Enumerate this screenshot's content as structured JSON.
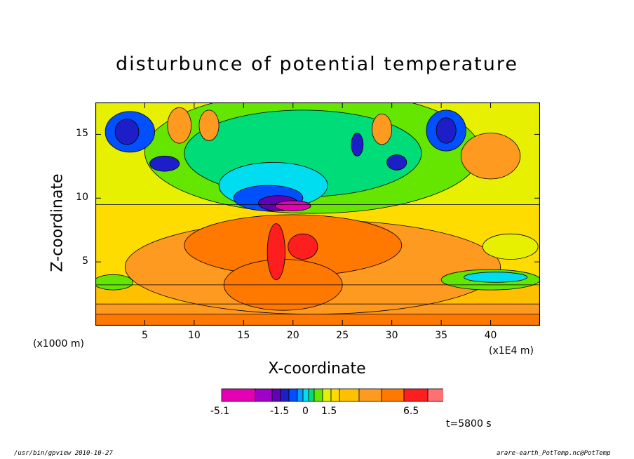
{
  "chart_data": {
    "type": "heatmap",
    "title": "disturbunce of potential temperature",
    "xlabel": "X-coordinate",
    "ylabel": "Z-coordinate",
    "x_unit": "(x1000 m)",
    "x_unit_secondary": "(x1E4 m)",
    "xlim": [
      0,
      45
    ],
    "ylim": [
      0,
      17.5
    ],
    "x_ticks": [
      "5",
      "10",
      "15",
      "20",
      "25",
      "30",
      "35",
      "40"
    ],
    "y_ticks": [
      "5",
      "10",
      "15"
    ],
    "colorbar": {
      "tick_labels": [
        "-5.1",
        "-1.5",
        "0",
        "1.5",
        "6.5"
      ],
      "colors": [
        "#e600b4",
        "#a000c8",
        "#6400b4",
        "#1e1ec8",
        "#0050ff",
        "#00a0ff",
        "#00dcf0",
        "#00dc78",
        "#64e600",
        "#e6f000",
        "#ffdc00",
        "#ffc000",
        "#ff9a20",
        "#ff7800",
        "#ff1e1e",
        "#ff7070",
        "#ffb4c8"
      ]
    },
    "regions": [
      {
        "shape": "rect",
        "x": [
          0,
          45
        ],
        "z": [
          0,
          17.5
        ],
        "level": "#ffc000"
      },
      {
        "shape": "rect",
        "x": [
          0,
          45
        ],
        "z": [
          3.2,
          17.5
        ],
        "level": "#ffdc00"
      },
      {
        "shape": "rect",
        "x": [
          0,
          45
        ],
        "z": [
          9.5,
          17.5
        ],
        "level": "#e6f000"
      },
      {
        "shape": "rect",
        "x": [
          0,
          45
        ],
        "z": [
          0,
          0.9
        ],
        "level": "#ff7800"
      },
      {
        "shape": "rect",
        "x": [
          0,
          45
        ],
        "z": [
          0.9,
          1.7
        ],
        "level": "#ff9a20"
      },
      {
        "shape": "rect",
        "x": [
          0,
          45
        ],
        "z": [
          1.7,
          2.3
        ],
        "level": "#ffc000"
      },
      {
        "shape": "ellipse",
        "cx": 22,
        "cz": 4.6,
        "rx": 19,
        "rz": 3.7,
        "level": "#ff9a20"
      },
      {
        "shape": "ellipse",
        "cx": 20,
        "cz": 6.3,
        "rx": 11,
        "rz": 2.4,
        "level": "#ff7800"
      },
      {
        "shape": "ellipse",
        "cx": 19,
        "cz": 3.2,
        "rx": 6,
        "rz": 2.0,
        "level": "#ff7800"
      },
      {
        "shape": "ellipse",
        "cx": 18.3,
        "cz": 5.8,
        "rx": 0.9,
        "rz": 2.2,
        "level": "#ff1e1e"
      },
      {
        "shape": "ellipse",
        "cx": 21,
        "cz": 6.2,
        "rx": 1.5,
        "rz": 1.0,
        "level": "#ff1e1e"
      },
      {
        "shape": "ellipse",
        "cx": 22,
        "cz": 13.6,
        "rx": 17,
        "rz": 4.8,
        "level": "#64e600"
      },
      {
        "shape": "ellipse",
        "cx": 21,
        "cz": 13.5,
        "rx": 12,
        "rz": 3.4,
        "level": "#00dc78"
      },
      {
        "shape": "ellipse",
        "cx": 18,
        "cz": 11,
        "rx": 5.5,
        "rz": 1.8,
        "level": "#00dcf0"
      },
      {
        "shape": "ellipse",
        "cx": 17.5,
        "cz": 10,
        "rx": 3.5,
        "rz": 1.0,
        "level": "#0050ff"
      },
      {
        "shape": "ellipse",
        "cx": 18.5,
        "cz": 9.6,
        "rx": 2.0,
        "rz": 0.6,
        "level": "#6400b4"
      },
      {
        "shape": "ellipse",
        "cx": 20,
        "cz": 9.4,
        "rx": 1.8,
        "rz": 0.4,
        "level": "#e600b4"
      },
      {
        "shape": "ellipse",
        "cx": 3.5,
        "cz": 15.2,
        "rx": 2.5,
        "rz": 1.6,
        "level": "#0050ff"
      },
      {
        "shape": "ellipse",
        "cx": 3.2,
        "cz": 15.2,
        "rx": 1.2,
        "rz": 1.0,
        "level": "#1e1ec8"
      },
      {
        "shape": "ellipse",
        "cx": 35.5,
        "cz": 15.3,
        "rx": 2.0,
        "rz": 1.6,
        "level": "#0050ff"
      },
      {
        "shape": "ellipse",
        "cx": 35.5,
        "cz": 15.3,
        "rx": 1.0,
        "rz": 1.0,
        "level": "#1e1ec8"
      },
      {
        "shape": "ellipse",
        "cx": 40,
        "cz": 13.3,
        "rx": 3.0,
        "rz": 1.8,
        "level": "#ff9a20"
      },
      {
        "shape": "ellipse",
        "cx": 42,
        "cz": 6.2,
        "rx": 2.8,
        "rz": 1.0,
        "level": "#e6f000"
      },
      {
        "shape": "ellipse",
        "cx": 40,
        "cz": 3.6,
        "rx": 5,
        "rz": 0.8,
        "level": "#64e600"
      },
      {
        "shape": "ellipse",
        "cx": 40.5,
        "cz": 3.8,
        "rx": 3.2,
        "rz": 0.4,
        "level": "#00dcf0"
      },
      {
        "shape": "ellipse",
        "cx": 1.8,
        "cz": 3.4,
        "rx": 2.0,
        "rz": 0.6,
        "level": "#64e600"
      },
      {
        "shape": "ellipse",
        "cx": 8.5,
        "cz": 15.7,
        "rx": 1.2,
        "rz": 1.4,
        "level": "#ff9a20"
      },
      {
        "shape": "ellipse",
        "cx": 11.5,
        "cz": 15.7,
        "rx": 1.0,
        "rz": 1.2,
        "level": "#ff9a20"
      },
      {
        "shape": "ellipse",
        "cx": 29,
        "cz": 15.4,
        "rx": 1.0,
        "rz": 1.2,
        "level": "#ff9a20"
      },
      {
        "shape": "ellipse",
        "cx": 7,
        "cz": 12.7,
        "rx": 1.5,
        "rz": 0.6,
        "level": "#1e1ec8"
      },
      {
        "shape": "ellipse",
        "cx": 30.5,
        "cz": 12.8,
        "rx": 1.0,
        "rz": 0.6,
        "level": "#1e1ec8"
      },
      {
        "shape": "ellipse",
        "cx": 26.5,
        "cz": 14.2,
        "rx": 0.6,
        "rz": 0.9,
        "level": "#1e1ec8"
      }
    ]
  },
  "time_label": "t=5800 s",
  "footer": {
    "left": "/usr/bin/gpview  2010-10-27",
    "right": "arare-earth_PotTemp.nc@PotTemp"
  }
}
